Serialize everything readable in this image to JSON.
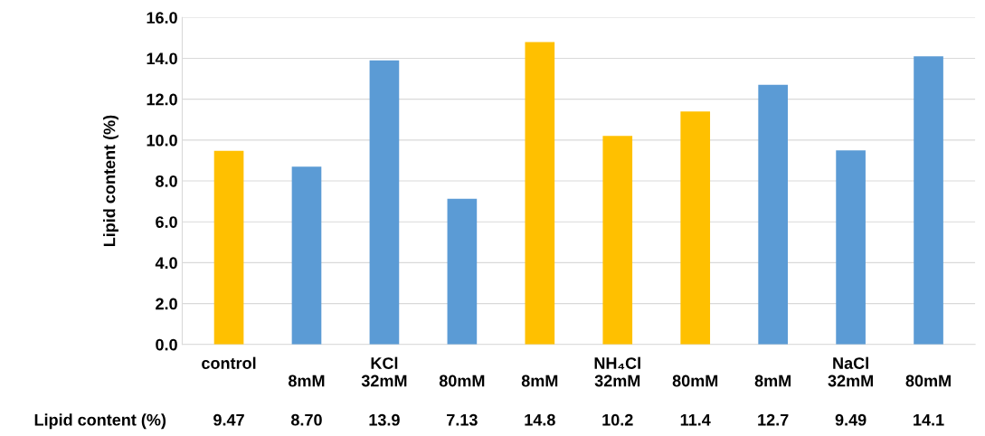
{
  "chart_data": {
    "type": "bar",
    "ylabel": "Lipid content (%)",
    "categories": [
      "control",
      "\n8mM",
      "KCl\n32mM",
      "\n80mM",
      "\n8mM",
      "NH₄Cl\n32mM",
      "\n80mM",
      "\n8mM",
      "NaCl\n32mM",
      "\n80mM"
    ],
    "values": [
      9.47,
      8.7,
      13.9,
      7.13,
      14.8,
      10.2,
      11.4,
      12.7,
      9.49,
      14.1
    ],
    "colors": [
      "#ffc000",
      "#5b9bd5",
      "#5b9bd5",
      "#5b9bd5",
      "#ffc000",
      "#ffc000",
      "#ffc000",
      "#5b9bd5",
      "#5b9bd5",
      "#5b9bd5"
    ],
    "value_labels": [
      "9.47",
      "8.70",
      "13.9",
      "7.13",
      "14.8",
      "10.2",
      "11.4",
      "12.7",
      "9.49",
      "14.1"
    ],
    "annotations": [
      "Lipid content (%)"
    ],
    "ylim": [
      0,
      16
    ],
    "yticks": [
      {
        "value": 0,
        "label": "0.0"
      },
      {
        "value": 2,
        "label": "2.0"
      },
      {
        "value": 4,
        "label": "4.0"
      },
      {
        "value": 6,
        "label": "6.0"
      },
      {
        "value": 8,
        "label": "8.0"
      },
      {
        "value": 10,
        "label": "10.0"
      },
      {
        "value": 12,
        "label": "12.0"
      },
      {
        "value": 14,
        "label": "14.0"
      },
      {
        "value": 16,
        "label": "16.0"
      }
    ],
    "grid": "y",
    "legend": false
  }
}
